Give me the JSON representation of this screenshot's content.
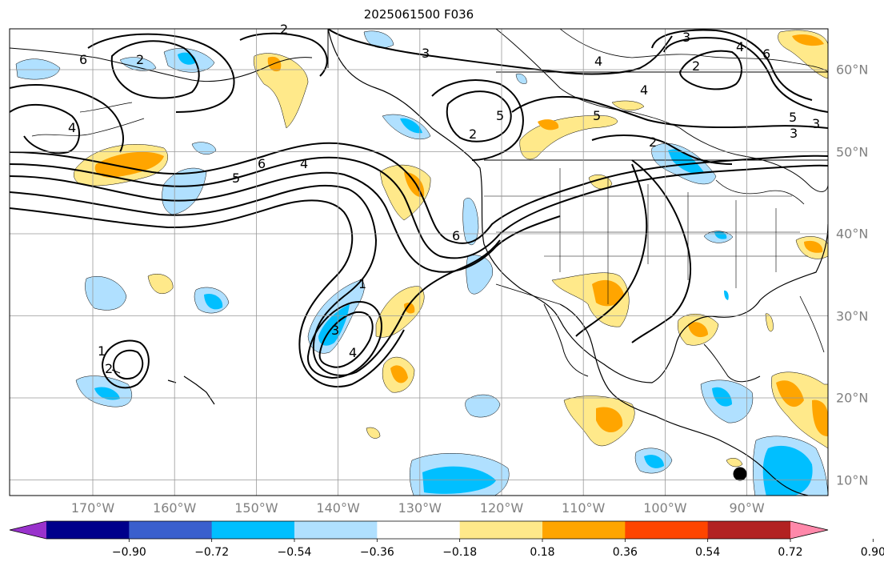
{
  "title": "2025061500 F036",
  "lon_labels": [
    {
      "text": "170°W",
      "lon": -170
    },
    {
      "text": "160°W",
      "lon": -160
    },
    {
      "text": "150°W",
      "lon": -150
    },
    {
      "text": "140°W",
      "lon": -140
    },
    {
      "text": "130°W",
      "lon": -130
    },
    {
      "text": "120°W",
      "lon": -120
    },
    {
      "text": "110°W",
      "lon": -110
    },
    {
      "text": "100°W",
      "lon": -100
    },
    {
      "text": "90°W",
      "lon": -90
    }
  ],
  "lat_labels": [
    {
      "text": "60°N",
      "lat": 60
    },
    {
      "text": "50°N",
      "lat": 50
    },
    {
      "text": "40°N",
      "lat": 40
    },
    {
      "text": "30°N",
      "lat": 30
    },
    {
      "text": "20°N",
      "lat": 20
    },
    {
      "text": "10°N",
      "lat": 10
    }
  ],
  "colorbar": {
    "colors": [
      "#9932cc",
      "#00008b",
      "#3a5fcd",
      "#00bfff",
      "#b0e0ff",
      "#ffffff",
      "#ffe98a",
      "#ffa500",
      "#ff4500",
      "#b22222",
      "#ff88aa"
    ],
    "labels": [
      "−0.90",
      "−0.72",
      "−0.54",
      "−0.36",
      "−0.18",
      "0.18",
      "0.36",
      "0.54",
      "0.72",
      "0.90"
    ]
  },
  "contour_labels": [
    "6",
    "4",
    "5",
    "6",
    "4",
    "2",
    "3",
    "2",
    "1",
    "3",
    "4",
    "1",
    "2",
    "3",
    "4",
    "5",
    "6",
    "3",
    "2",
    "4",
    "6",
    "5",
    "3",
    "2",
    "4",
    "5",
    "2"
  ]
}
